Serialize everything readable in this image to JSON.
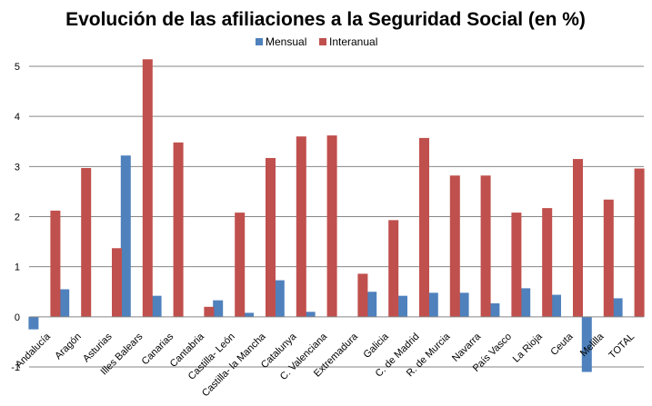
{
  "chart_data": {
    "type": "bar",
    "title": "Evolución de las afiliaciones a la Seguridad Social (en %)",
    "xlabel": "",
    "ylabel": "",
    "ylim": [
      -1,
      5
    ],
    "yticks": [
      "-1",
      "0",
      "1",
      "2",
      "3",
      "4",
      "5"
    ],
    "grid": true,
    "legend_position": "top",
    "categories": [
      "Andalucía",
      "Aragón",
      "Asturias",
      "Illes Balears",
      "Canarias",
      "Cantabria",
      "Castilla- León",
      "Castilla- la Mancha",
      "Catalunya",
      "C. Valenciana",
      "Extremadura",
      "Galicia",
      "C. de Madrid",
      "R. de Murcia",
      "Navarra",
      "País Vasco",
      "La Rioja",
      "Ceuta",
      "Melilla",
      "TOTAL"
    ],
    "series": [
      {
        "name": "Mensual",
        "color": "#4F81BD",
        "values": [
          -0.25,
          0.55,
          0.0,
          3.22,
          0.42,
          0.0,
          0.33,
          0.08,
          0.73,
          0.1,
          0.0,
          0.5,
          0.42,
          0.48,
          0.48,
          0.27,
          0.57,
          0.44,
          -1.1,
          0.37
        ]
      },
      {
        "name": "Interanual",
        "color": "#C0504D",
        "values": [
          2.12,
          2.97,
          1.37,
          5.14,
          3.48,
          0.2,
          2.08,
          3.17,
          3.6,
          3.62,
          0.86,
          1.93,
          3.57,
          2.82,
          2.82,
          2.08,
          2.17,
          3.15,
          2.34,
          2.96
        ]
      }
    ]
  }
}
